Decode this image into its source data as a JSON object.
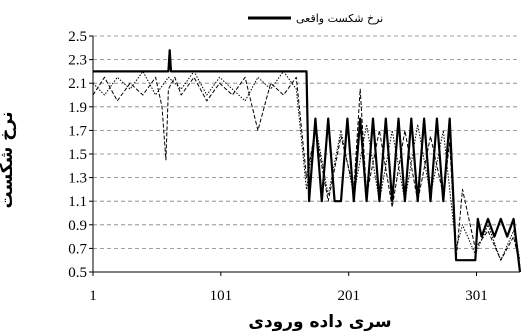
{
  "chart_data": {
    "type": "line",
    "xlabel": "سری داده ورودی",
    "ylabel": "نرخ شکست",
    "legend": {
      "entries": [
        "نرخ شکست واقعی"
      ],
      "placement": "top-center"
    },
    "xlim": [
      1,
      335
    ],
    "ylim": [
      0.5,
      2.5
    ],
    "x_ticks": [
      "1",
      "101",
      "201",
      "301"
    ],
    "y_ticks": [
      "0.5",
      "0.7",
      "0.9",
      "1.1",
      "1.3",
      "1.5",
      "1.7",
      "1.9",
      "2.1",
      "2.3",
      "2.5"
    ],
    "grid": "horizontal dashed",
    "series": [
      {
        "name": "نرخ شکست واقعی",
        "style": "solid-thick",
        "color": "#000000",
        "x": [
          1,
          60,
          61,
          62,
          168,
          170,
          175,
          180,
          185,
          190,
          195,
          200,
          205,
          210,
          215,
          220,
          225,
          230,
          235,
          240,
          245,
          250,
          255,
          260,
          265,
          270,
          275,
          280,
          283,
          285,
          290,
          295,
          300,
          302,
          305,
          310,
          315,
          320,
          325,
          330,
          335
        ],
        "values": [
          2.2,
          2.2,
          2.38,
          2.2,
          2.2,
          1.1,
          1.8,
          1.1,
          1.8,
          1.1,
          1.1,
          1.8,
          1.1,
          1.8,
          1.1,
          1.8,
          1.1,
          1.8,
          1.1,
          1.8,
          1.1,
          1.8,
          1.1,
          1.8,
          1.1,
          1.8,
          1.1,
          1.8,
          1.1,
          0.6,
          0.6,
          0.6,
          0.6,
          0.95,
          0.8,
          0.95,
          0.8,
          0.95,
          0.8,
          0.95,
          0.5
        ]
      },
      {
        "name": "",
        "style": "dashed",
        "color": "#000000",
        "x": [
          1,
          10,
          20,
          30,
          40,
          50,
          55,
          58,
          60,
          65,
          70,
          80,
          90,
          100,
          110,
          120,
          130,
          140,
          150,
          160,
          168,
          175,
          185,
          195,
          205,
          210,
          215,
          225,
          235,
          245,
          255,
          265,
          275,
          280,
          285,
          290,
          300,
          310,
          320,
          330,
          335
        ],
        "values": [
          2.0,
          2.15,
          1.95,
          2.1,
          2.0,
          2.15,
          1.9,
          1.45,
          2.05,
          2.15,
          2.0,
          2.15,
          1.95,
          2.1,
          2.0,
          2.15,
          1.7,
          2.1,
          2.0,
          2.15,
          1.3,
          1.7,
          1.1,
          1.65,
          1.2,
          2.05,
          1.15,
          1.7,
          1.05,
          1.7,
          1.1,
          1.65,
          1.15,
          1.6,
          0.6,
          1.2,
          0.7,
          0.85,
          0.6,
          0.8,
          0.55
        ]
      },
      {
        "name": "",
        "style": "dotted",
        "color": "#000000",
        "x": [
          1,
          10,
          20,
          30,
          40,
          50,
          60,
          70,
          80,
          90,
          100,
          110,
          120,
          130,
          140,
          150,
          160,
          168,
          175,
          185,
          195,
          205,
          215,
          225,
          235,
          245,
          255,
          265,
          275,
          280,
          285,
          290,
          300,
          310,
          320,
          330,
          335
        ],
        "values": [
          2.1,
          2.0,
          2.15,
          2.05,
          2.2,
          2.0,
          2.15,
          2.05,
          2.2,
          2.0,
          2.15,
          2.05,
          1.95,
          2.15,
          2.05,
          2.2,
          2.05,
          1.2,
          1.75,
          1.15,
          1.7,
          1.15,
          1.75,
          1.1,
          1.7,
          1.1,
          1.75,
          1.15,
          1.7,
          1.2,
          0.7,
          0.9,
          0.65,
          0.9,
          0.6,
          0.85,
          0.6
        ]
      }
    ]
  }
}
